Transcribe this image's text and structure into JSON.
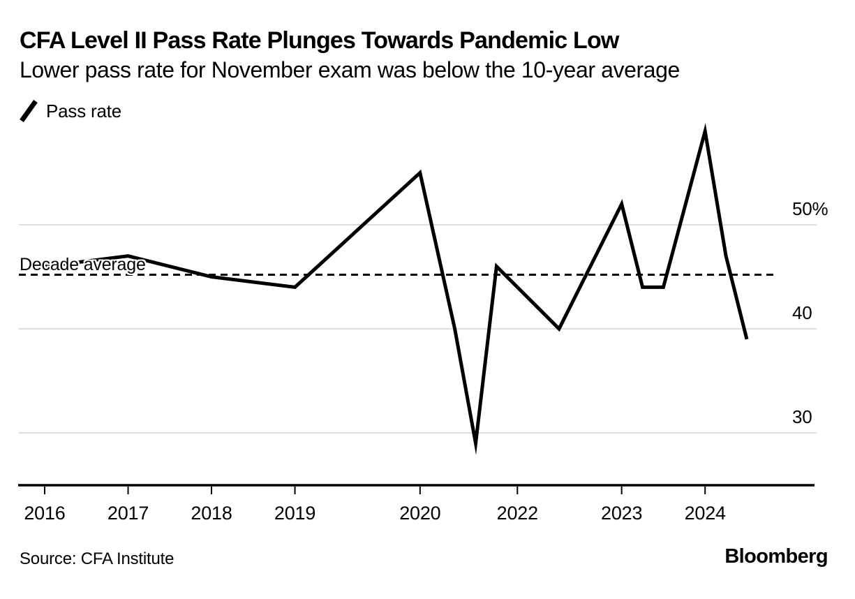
{
  "header": {
    "title": "CFA Level II Pass Rate Plunges Towards Pandemic Low",
    "subtitle": "Lower pass rate for November exam was below the 10-year average"
  },
  "legend": {
    "icon": "line-slash-icon",
    "label": "Pass rate"
  },
  "footer": {
    "source": "Source: CFA Institute",
    "brand": "Bloomberg"
  },
  "colors": {
    "text": "#000000",
    "series_line": "#000000",
    "reference_line": "#000000",
    "gridline": "#d4d4d4",
    "axis": "#000000",
    "background": "#ffffff"
  },
  "chart_data": {
    "type": "line",
    "title": "CFA Level II Pass Rate Plunges Towards Pandemic Low",
    "subtitle": "Lower pass rate for November exam was below the 10-year average",
    "ylabel": "Pass rate (%)",
    "xlabel": "",
    "grid": true,
    "legend_position": "top-left",
    "y_axis": {
      "side": "right",
      "range": [
        26,
        61
      ],
      "ticks": [
        {
          "value": 50,
          "label": "50%"
        },
        {
          "value": 40,
          "label": "40"
        },
        {
          "value": 30,
          "label": "30"
        }
      ]
    },
    "x_axis": {
      "unit": "months since June 2016",
      "ticks": [
        {
          "label": "2016",
          "m": 0
        },
        {
          "label": "2017",
          "m": 12
        },
        {
          "label": "2018",
          "m": 24
        },
        {
          "label": "2019",
          "m": 36
        },
        {
          "label": "2020",
          "m": 54
        },
        {
          "label": "2022",
          "m": 68
        },
        {
          "label": "2023",
          "m": 83
        },
        {
          "label": "2024",
          "m": 95
        }
      ]
    },
    "reference_line": {
      "label": "Decade average",
      "value": 45.2,
      "style": "dashed"
    },
    "series": [
      {
        "name": "Pass rate",
        "points": [
          {
            "exam": "Jun 2016",
            "m": 0,
            "value": 46
          },
          {
            "exam": "Jun 2017",
            "m": 12,
            "value": 47
          },
          {
            "exam": "Jun 2018",
            "m": 24,
            "value": 45
          },
          {
            "exam": "Jun 2019",
            "m": 36,
            "value": 44
          },
          {
            "exam": "Dec 2020",
            "m": 54,
            "value": 55
          },
          {
            "exam": "May 2021",
            "m": 59,
            "value": 40
          },
          {
            "exam": "Aug 2021",
            "m": 62,
            "value": 29
          },
          {
            "exam": "Nov 2021",
            "m": 65,
            "value": 46
          },
          {
            "exam": "Feb 2022",
            "m": 68,
            "value": 44
          },
          {
            "exam": "Aug 2022",
            "m": 74,
            "value": 40
          },
          {
            "exam": "Nov 2022",
            "m": 77,
            "value": 44
          },
          {
            "exam": "May 2023",
            "m": 83,
            "value": 52
          },
          {
            "exam": "Aug 2023",
            "m": 86,
            "value": 44
          },
          {
            "exam": "Nov 2023",
            "m": 89,
            "value": 44
          },
          {
            "exam": "May 2024",
            "m": 95,
            "value": 59
          },
          {
            "exam": "Aug 2024",
            "m": 98,
            "value": 47
          },
          {
            "exam": "Nov 2024",
            "m": 101,
            "value": 39
          }
        ]
      }
    ]
  }
}
